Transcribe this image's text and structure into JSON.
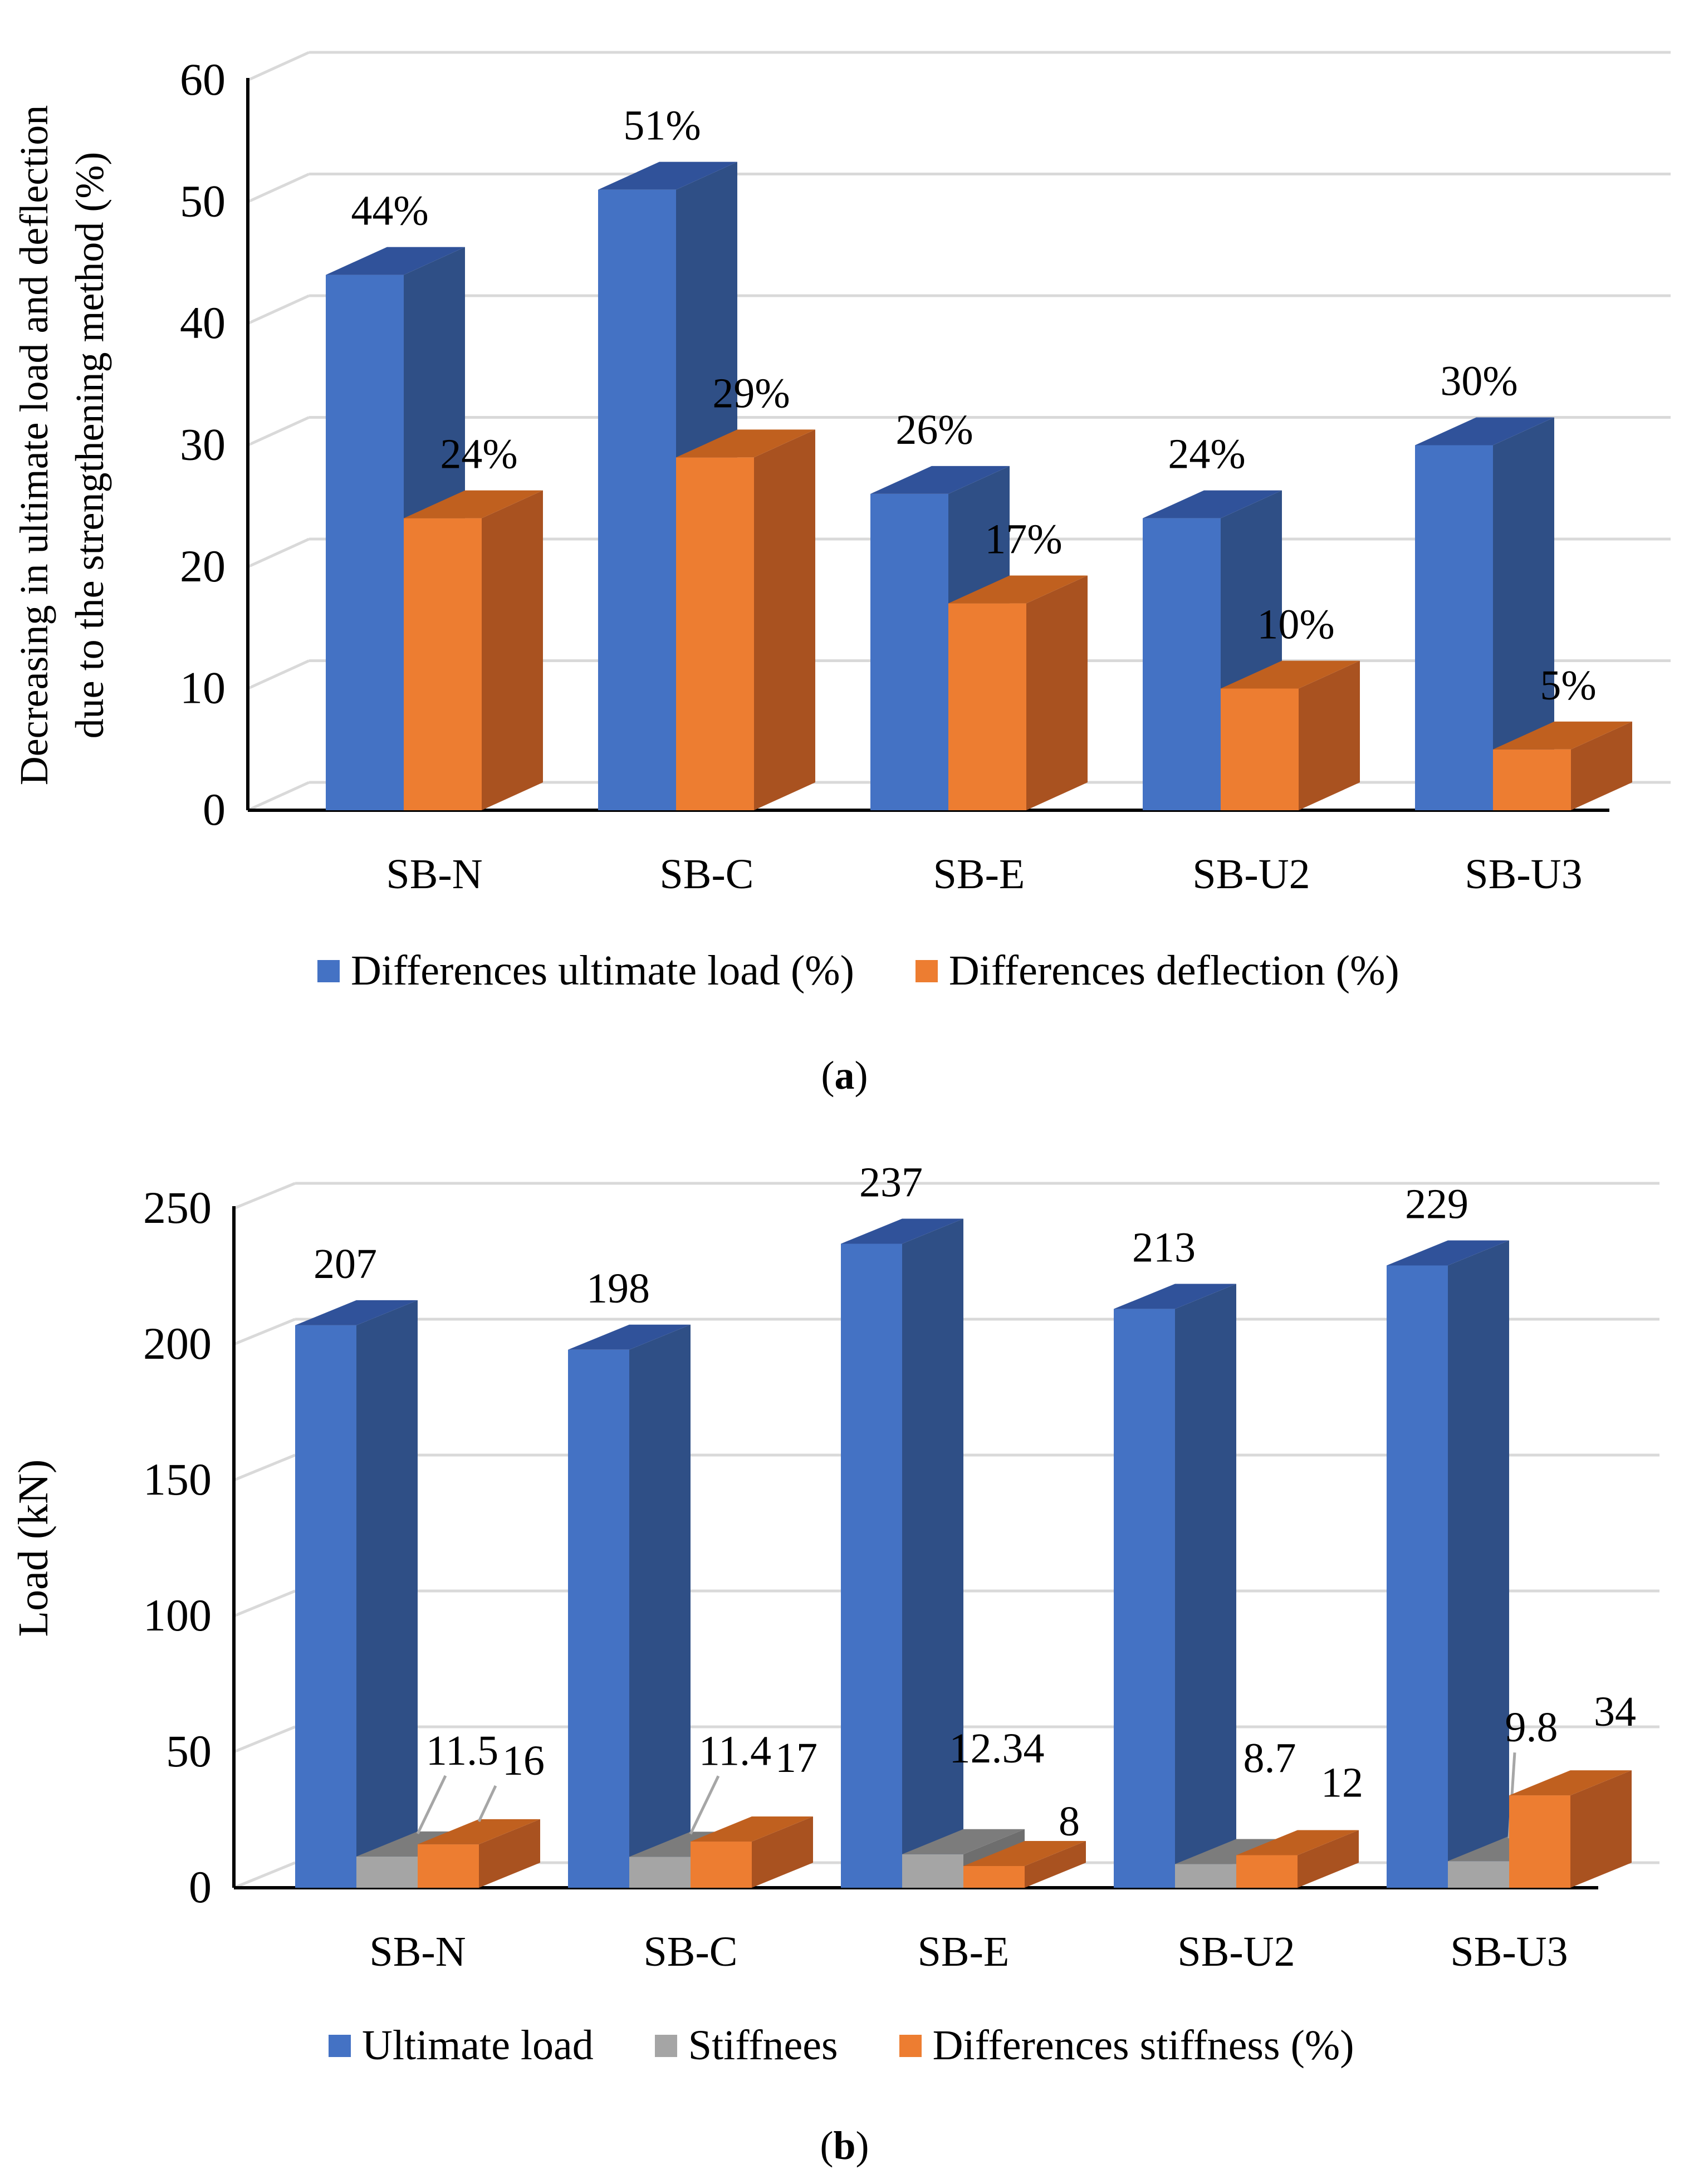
{
  "chart_data": [
    {
      "type": "bar",
      "style": "3d-clustered",
      "caption_letter": "a",
      "ylabel_lines": [
        "Decreasing in ultimate load and deflection",
        "due to the strengthening method (%)"
      ],
      "xlabel": "",
      "ylim": [
        0,
        60
      ],
      "yticks": [
        0,
        10,
        20,
        30,
        40,
        50,
        60
      ],
      "grid": true,
      "legend_position": "bottom",
      "categories": [
        "SB-N",
        "SB-C",
        "SB-E",
        "SB-U2",
        "SB-U3"
      ],
      "series": [
        {
          "name": "Differences ultimate load (%)",
          "color": "#4472C4",
          "side_color": "#2F4F86",
          "top_color": "#30529A",
          "values": [
            44,
            51,
            26,
            24,
            30
          ],
          "labels": [
            "44%",
            "51%",
            "26%",
            "24%",
            "30%"
          ]
        },
        {
          "name": "Differences deflection (%)",
          "color": "#ED7D31",
          "side_color": "#A95220",
          "top_color": "#C0601F",
          "values": [
            24,
            29,
            17,
            10,
            5
          ],
          "labels": [
            "24%",
            "29%",
            "17%",
            "10%",
            "5%"
          ]
        }
      ]
    },
    {
      "type": "bar",
      "style": "3d-clustered",
      "caption_letter": "b",
      "ylabel_lines": [
        "Load (kN)"
      ],
      "xlabel": "",
      "ylim": [
        0,
        250
      ],
      "yticks": [
        0,
        50,
        100,
        150,
        200,
        250
      ],
      "grid": true,
      "legend_position": "bottom",
      "categories": [
        "SB-N",
        "SB-C",
        "SB-E",
        "SB-U2",
        "SB-U3"
      ],
      "series": [
        {
          "name": "Ultimate load",
          "color": "#4472C4",
          "side_color": "#2F4F86",
          "top_color": "#30529A",
          "values": [
            207,
            198,
            237,
            213,
            229
          ],
          "labels": [
            "207",
            "198",
            "237",
            "213",
            "229"
          ]
        },
        {
          "name": "Stiffnees",
          "color": "#A5A5A5",
          "side_color": "#6E6E6E",
          "top_color": "#7C7C7C",
          "values": [
            11.5,
            11.4,
            12.34,
            8.7,
            9.8
          ],
          "labels": [
            "11.5",
            "11.4",
            "12.34",
            "8.7",
            "9.8"
          ]
        },
        {
          "name": "Differences stiffness (%)",
          "color": "#ED7D31",
          "side_color": "#A95220",
          "top_color": "#C0601F",
          "values": [
            16,
            17,
            8,
            12,
            34
          ],
          "labels": [
            "16",
            "17",
            "8",
            "12",
            "34"
          ]
        }
      ]
    }
  ]
}
